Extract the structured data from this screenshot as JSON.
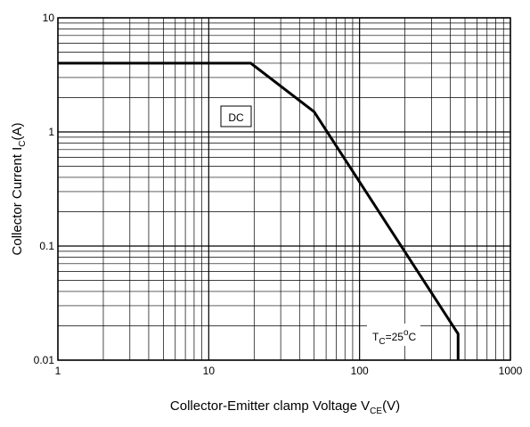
{
  "chart_data": {
    "type": "line",
    "xlabel": {
      "text": "Collector-Emitter clamp Voltage V",
      "sub": "CE",
      "suffix": "(V)"
    },
    "ylabel": {
      "text": "Collector Current I",
      "sub": "C",
      "suffix": "(A)"
    },
    "x": [
      1,
      19,
      50,
      450,
      450
    ],
    "series": [
      {
        "color": "#000000",
        "values": [
          4,
          4,
          1.5,
          0.017,
          0.01
        ]
      }
    ],
    "xlim": [
      1,
      1000
    ],
    "ylim": [
      0.01,
      10
    ],
    "xticks": [
      1,
      10,
      100,
      1000
    ],
    "yticks": [
      0.01,
      0.1,
      1,
      10
    ],
    "log_x": true,
    "log_y": true,
    "grid": true,
    "annotations": {
      "dc": "DC",
      "temp": {
        "t": "T",
        "sub": "C",
        "eq": "=25",
        "sup": "o",
        "unit": "C"
      }
    }
  }
}
